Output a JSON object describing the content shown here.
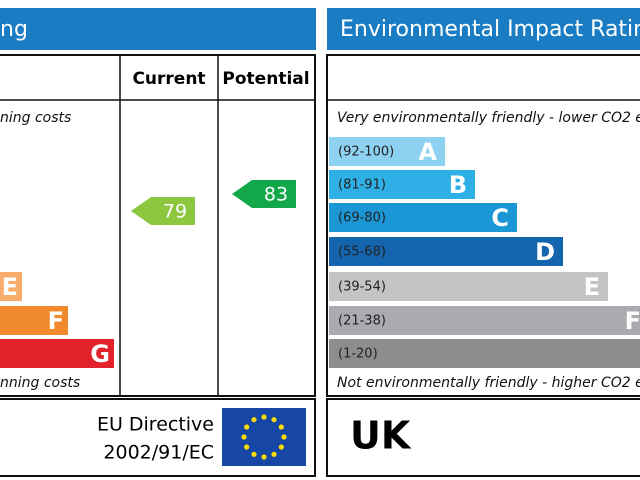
{
  "energy_panel": {
    "title": "ng",
    "columns": [
      "Current",
      "Potential"
    ],
    "top_note": "ning costs",
    "bottom_note": "nning costs",
    "bands": [
      {
        "letter": "E",
        "color": "#f7ac6b"
      },
      {
        "letter": "F",
        "color": "#f08a2c"
      },
      {
        "letter": "G",
        "color": "#e3232b"
      }
    ],
    "current": {
      "value": 79,
      "color": "#8dc63f"
    },
    "potential": {
      "value": 83,
      "color": "#12a84a"
    },
    "directive": [
      "EU Directive",
      "2002/91/EC"
    ]
  },
  "environment_panel": {
    "title": "Environmental Impact Ratin",
    "top_note": "Very environmentally friendly - lower CO2 e",
    "bottom_note": "Not environmentally friendly - higher CO2 e",
    "bands": [
      {
        "range": "(92-100)",
        "letter": "A",
        "color": "#8ed2f2"
      },
      {
        "range": "(81-91)",
        "letter": "B",
        "color": "#2eb0e6"
      },
      {
        "range": "(69-80)",
        "letter": "C",
        "color": "#1b97d6"
      },
      {
        "range": "(55-68)",
        "letter": "D",
        "color": "#1565ae"
      },
      {
        "range": "(39-54)",
        "letter": "E",
        "color": "#c3c4c6"
      },
      {
        "range": "(21-38)",
        "letter": "F",
        "color": "#a9abae"
      },
      {
        "range": "(1-20)",
        "letter": "G",
        "color": "#8b8d8f"
      }
    ],
    "country": "UK"
  }
}
